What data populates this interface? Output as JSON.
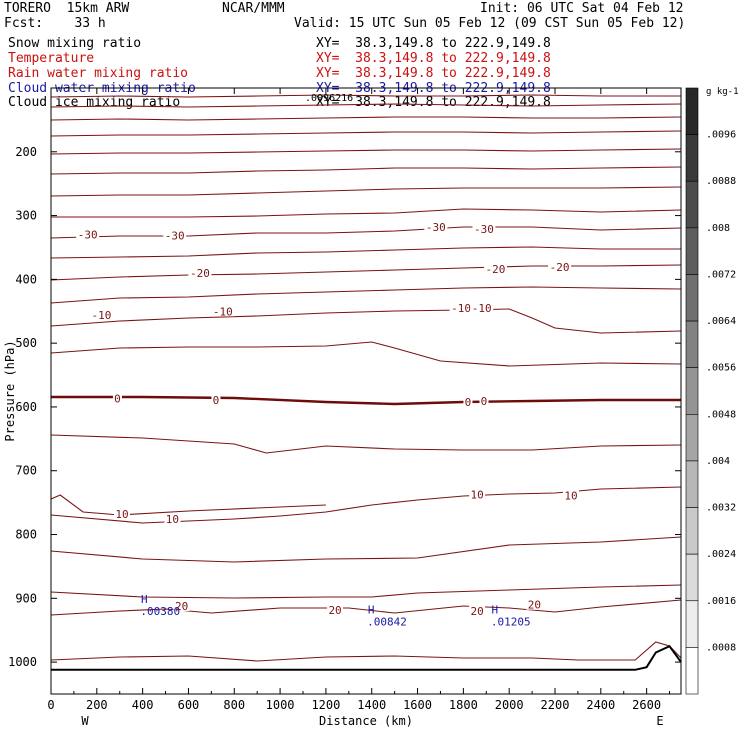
{
  "header": {
    "model": "TORERO  15km ARW",
    "center": "NCAR/MMM",
    "init": "Init: 06 UTC Sat 04 Feb 12",
    "fcst": "Fcst:    33 h",
    "valid": "Valid: 15 UTC Sun 05 Feb 12 (09 CST Sun 05 Feb 12)"
  },
  "fields": [
    {
      "name": "Snow mixing ratio",
      "xy": "XY=  38.3,149.8 to 222.9,149.8",
      "color": "#000000"
    },
    {
      "name": "Temperature",
      "xy": "XY=  38.3,149.8 to 222.9,149.8",
      "color": "#cc1111"
    },
    {
      "name": "Rain water mixing ratio",
      "xy": "XY=  38.3,149.8 to 222.9,149.8",
      "color": "#cc1111"
    },
    {
      "name": "Cloud water mixing ratio",
      "xy": "XY=  38.3,149.8 to 222.9,149.8",
      "color": "#1a1aa6"
    },
    {
      "name": "Cloud ice mixing ratio",
      "xy": "XY=  38.3,149.8 to 222.9,149.8",
      "color": "#000000"
    }
  ],
  "overlap_label": ".0096216",
  "chart_data": {
    "type": "cross-section contour",
    "xlabel": "Distance (km)",
    "ylabel": "Pressure (hPa)",
    "xlim": [
      0,
      2750
    ],
    "ylim": [
      1050,
      100
    ],
    "x_ticks": [
      0,
      200,
      400,
      600,
      800,
      1000,
      1200,
      1400,
      1600,
      1800,
      2000,
      2200,
      2400,
      2600
    ],
    "y_ticks": [
      200,
      300,
      400,
      500,
      600,
      700,
      800,
      900,
      1000
    ],
    "x_ends": {
      "left": "W",
      "right": "E"
    },
    "colorbar": {
      "units": "g kg-1",
      "labels": [
        ".0096",
        ".0088",
        ".008",
        ".0072",
        ".0064",
        ".0056",
        ".0048",
        ".004",
        ".0032",
        ".0024",
        ".0016",
        ".0008"
      ]
    },
    "temperature_labels": [
      {
        "text": "-30",
        "x": 160,
        "p": 330
      },
      {
        "text": "-30",
        "x": 540,
        "p": 331
      },
      {
        "text": "-30",
        "x": 1680,
        "p": 318
      },
      {
        "text": "-30",
        "x": 1890,
        "p": 321
      },
      {
        "text": "-20",
        "x": 650,
        "p": 390
      },
      {
        "text": "-20",
        "x": 1940,
        "p": 384
      },
      {
        "text": "-20",
        "x": 2220,
        "p": 381
      },
      {
        "text": "-10",
        "x": 220,
        "p": 456
      },
      {
        "text": "-10",
        "x": 750,
        "p": 450
      },
      {
        "text": "-10",
        "x": 1790,
        "p": 445
      },
      {
        "text": "-10",
        "x": 1880,
        "p": 445
      },
      {
        "text": "0",
        "x": 290,
        "p": 587
      },
      {
        "text": "0",
        "x": 720,
        "p": 589
      },
      {
        "text": "0",
        "x": 1820,
        "p": 592
      },
      {
        "text": "0",
        "x": 1890,
        "p": 591
      },
      {
        "text": "10",
        "x": 310,
        "p": 768
      },
      {
        "text": "10",
        "x": 530,
        "p": 776
      },
      {
        "text": "10",
        "x": 1860,
        "p": 737
      },
      {
        "text": "10",
        "x": 2270,
        "p": 739
      },
      {
        "text": "20",
        "x": 570,
        "p": 912
      },
      {
        "text": "20",
        "x": 1240,
        "p": 918
      },
      {
        "text": "20",
        "x": 1860,
        "p": 920
      },
      {
        "text": "20",
        "x": 2110,
        "p": 910
      }
    ],
    "cloud_water_highs": [
      {
        "mark": "H",
        "value": ".00380",
        "x": 390,
        "p": 907
      },
      {
        "mark": "H",
        "value": ".00842",
        "x": 1380,
        "p": 924
      },
      {
        "mark": "H",
        "value": ".01205",
        "x": 1920,
        "p": 924
      }
    ],
    "terrain": {
      "x": [
        0,
        2550,
        2600,
        2640,
        2700,
        2750
      ],
      "p": [
        1012,
        1012,
        1008,
        985,
        975,
        1000
      ]
    },
    "colors": {
      "contour": "#7a1414",
      "freezing_line": "#6e0c0c",
      "cloud_water": "#1a1aa6",
      "terrain": "#000000"
    }
  }
}
